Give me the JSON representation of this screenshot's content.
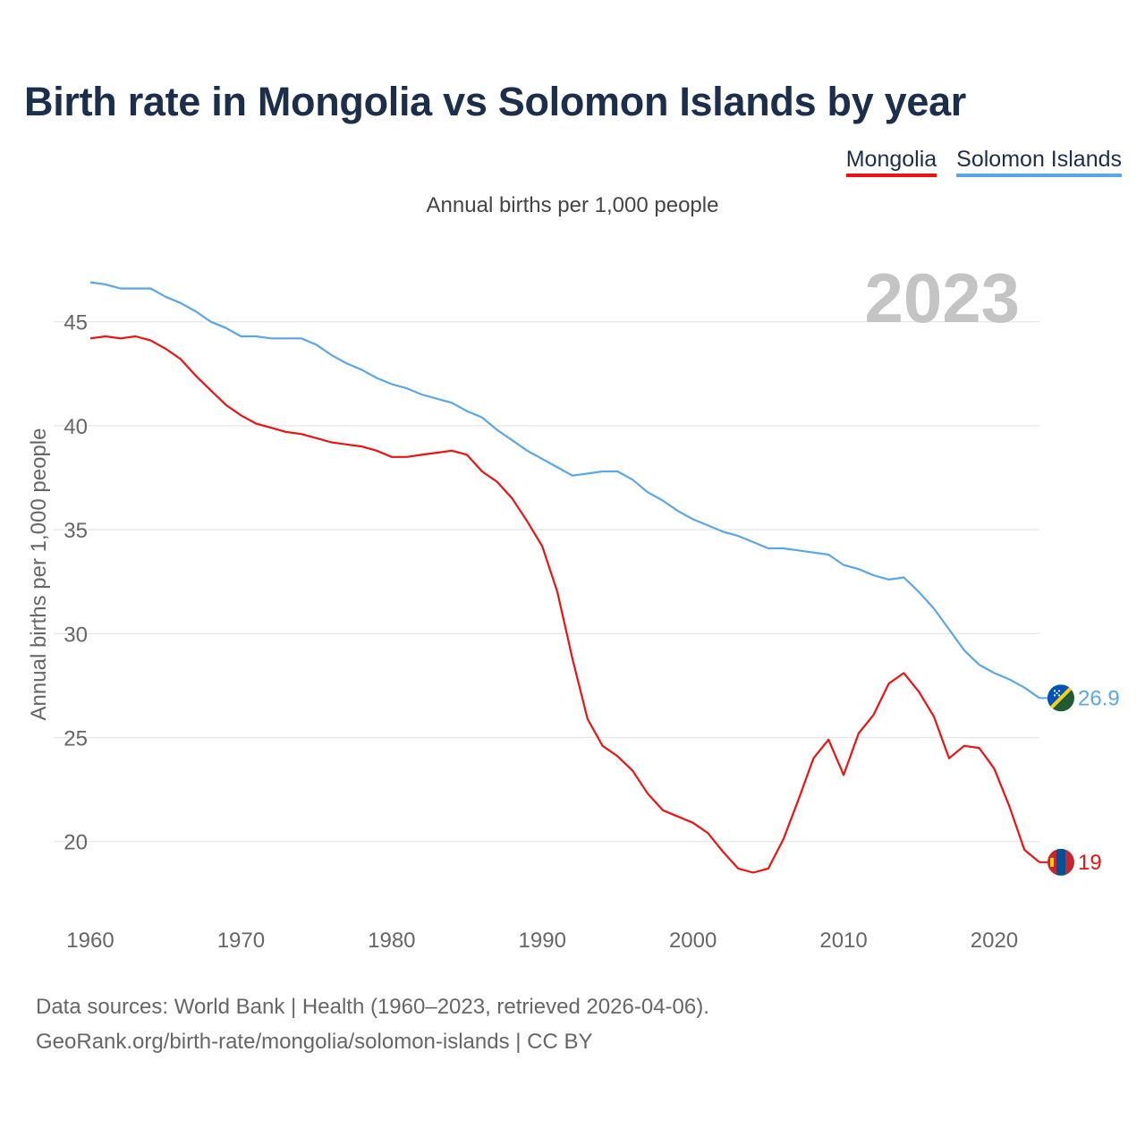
{
  "title": "Birth rate in Mongolia vs Solomon Islands by year",
  "legend": {
    "mongolia": "Mongolia",
    "solomon": "Solomon Islands"
  },
  "subtitle": "Annual births per 1,000 people",
  "sources": {
    "line1": "Data sources: World Bank | Health (1960–2023, retrieved 2026-04-06).",
    "line2": "GeoRank.org/birth-rate/mongolia/solomon-islands | CC BY"
  },
  "chart_data": {
    "type": "line",
    "title": "Birth rate in Mongolia vs Solomon Islands by year",
    "xlabel": "",
    "ylabel": "Annual births per 1,000 people",
    "year_label": "2023",
    "xlim": [
      1960,
      2023
    ],
    "ylim": [
      16.5,
      48
    ],
    "x_ticks": [
      1960,
      1970,
      1980,
      1990,
      2000,
      2010,
      2020
    ],
    "y_ticks": [
      20,
      25,
      30,
      35,
      40,
      45
    ],
    "grid": true,
    "x": [
      1960,
      1961,
      1962,
      1963,
      1964,
      1965,
      1966,
      1967,
      1968,
      1969,
      1970,
      1971,
      1972,
      1973,
      1974,
      1975,
      1976,
      1977,
      1978,
      1979,
      1980,
      1981,
      1982,
      1983,
      1984,
      1985,
      1986,
      1987,
      1988,
      1989,
      1990,
      1991,
      1992,
      1993,
      1994,
      1995,
      1996,
      1997,
      1998,
      1999,
      2000,
      2001,
      2002,
      2003,
      2004,
      2005,
      2006,
      2007,
      2008,
      2009,
      2010,
      2011,
      2012,
      2013,
      2014,
      2015,
      2016,
      2017,
      2018,
      2019,
      2020,
      2021,
      2022,
      2023
    ],
    "series": [
      {
        "name": "Mongolia",
        "color": "#ee1111",
        "end_label": "19",
        "flag": "mongolia-flag-icon",
        "values": [
          44.2,
          44.3,
          44.2,
          44.3,
          44.1,
          43.7,
          43.2,
          42.4,
          41.7,
          41.0,
          40.5,
          40.1,
          39.9,
          39.7,
          39.6,
          39.4,
          39.2,
          39.1,
          39.0,
          38.8,
          38.5,
          38.5,
          38.6,
          38.7,
          38.8,
          38.6,
          37.8,
          37.3,
          36.5,
          35.4,
          34.2,
          32.0,
          28.8,
          25.9,
          24.6,
          24.1,
          23.4,
          22.3,
          21.5,
          21.2,
          20.9,
          20.4,
          19.5,
          18.7,
          18.5,
          18.7,
          20.1,
          22.0,
          24.0,
          24.9,
          23.2,
          25.2,
          26.1,
          27.6,
          28.1,
          27.2,
          26.0,
          24.0,
          24.6,
          24.5,
          23.5,
          21.7,
          19.6,
          19.0
        ]
      },
      {
        "name": "Solomon Islands",
        "color": "#5aa6e8",
        "end_label": "26.9",
        "flag": "solomon-islands-flag-icon",
        "values": [
          46.9,
          46.8,
          46.6,
          46.6,
          46.6,
          46.2,
          45.9,
          45.5,
          45.0,
          44.7,
          44.3,
          44.3,
          44.2,
          44.2,
          44.2,
          43.9,
          43.4,
          43.0,
          42.7,
          42.3,
          42.0,
          41.8,
          41.5,
          41.3,
          41.1,
          40.7,
          40.4,
          39.8,
          39.3,
          38.8,
          38.4,
          38.0,
          37.6,
          37.7,
          37.8,
          37.8,
          37.4,
          36.8,
          36.4,
          35.9,
          35.5,
          35.2,
          34.9,
          34.7,
          34.4,
          34.1,
          34.1,
          34.0,
          33.9,
          33.8,
          33.3,
          33.1,
          32.8,
          32.6,
          32.7,
          32.0,
          31.2,
          30.2,
          29.2,
          28.5,
          28.1,
          27.8,
          27.4,
          26.9
        ]
      }
    ]
  }
}
